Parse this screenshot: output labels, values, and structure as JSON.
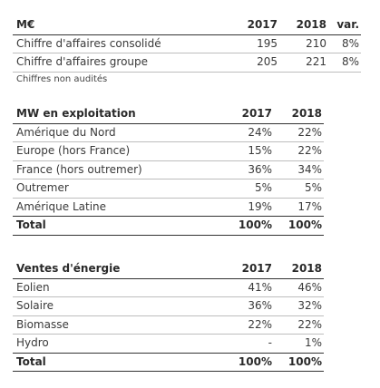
{
  "table1": {
    "header": [
      "M€",
      "2017",
      "2018",
      "var."
    ],
    "rows": [
      {
        "label": "Chiffre d'affaires consolidé",
        "y2017": "195",
        "y2018": "210",
        "var": "8%"
      },
      {
        "label": "Chiffre d'affaires groupe",
        "y2017": "205",
        "y2018": "221",
        "var": "8%"
      }
    ],
    "note": "Chiffres non audités"
  },
  "table2": {
    "header": [
      "MW en exploitation",
      "2017",
      "2018"
    ],
    "rows": [
      {
        "label": "Amérique du Nord",
        "y2017": "24%",
        "y2018": "22%"
      },
      {
        "label": "Europe (hors France)",
        "y2017": "15%",
        "y2018": "22%"
      },
      {
        "label": "France (hors outremer)",
        "y2017": "36%",
        "y2018": "34%"
      },
      {
        "label": "Outremer",
        "y2017": "5%",
        "y2018": "5%"
      },
      {
        "label": "Amérique Latine",
        "y2017": "19%",
        "y2018": "17%"
      }
    ],
    "total": {
      "label": "Total",
      "y2017": "100%",
      "y2018": "100%"
    }
  },
  "table3": {
    "header": [
      "Ventes d'énergie",
      "2017",
      "2018"
    ],
    "rows": [
      {
        "label": "Eolien",
        "y2017": "41%",
        "y2018": "46%"
      },
      {
        "label": "Solaire",
        "y2017": "36%",
        "y2018": "32%"
      },
      {
        "label": "Biomasse",
        "y2017": "22%",
        "y2018": "22%"
      },
      {
        "label": "Hydro",
        "y2017": "-",
        "y2018": "1%"
      }
    ],
    "total": {
      "label": "Total",
      "y2017": "100%",
      "y2018": "100%"
    }
  }
}
